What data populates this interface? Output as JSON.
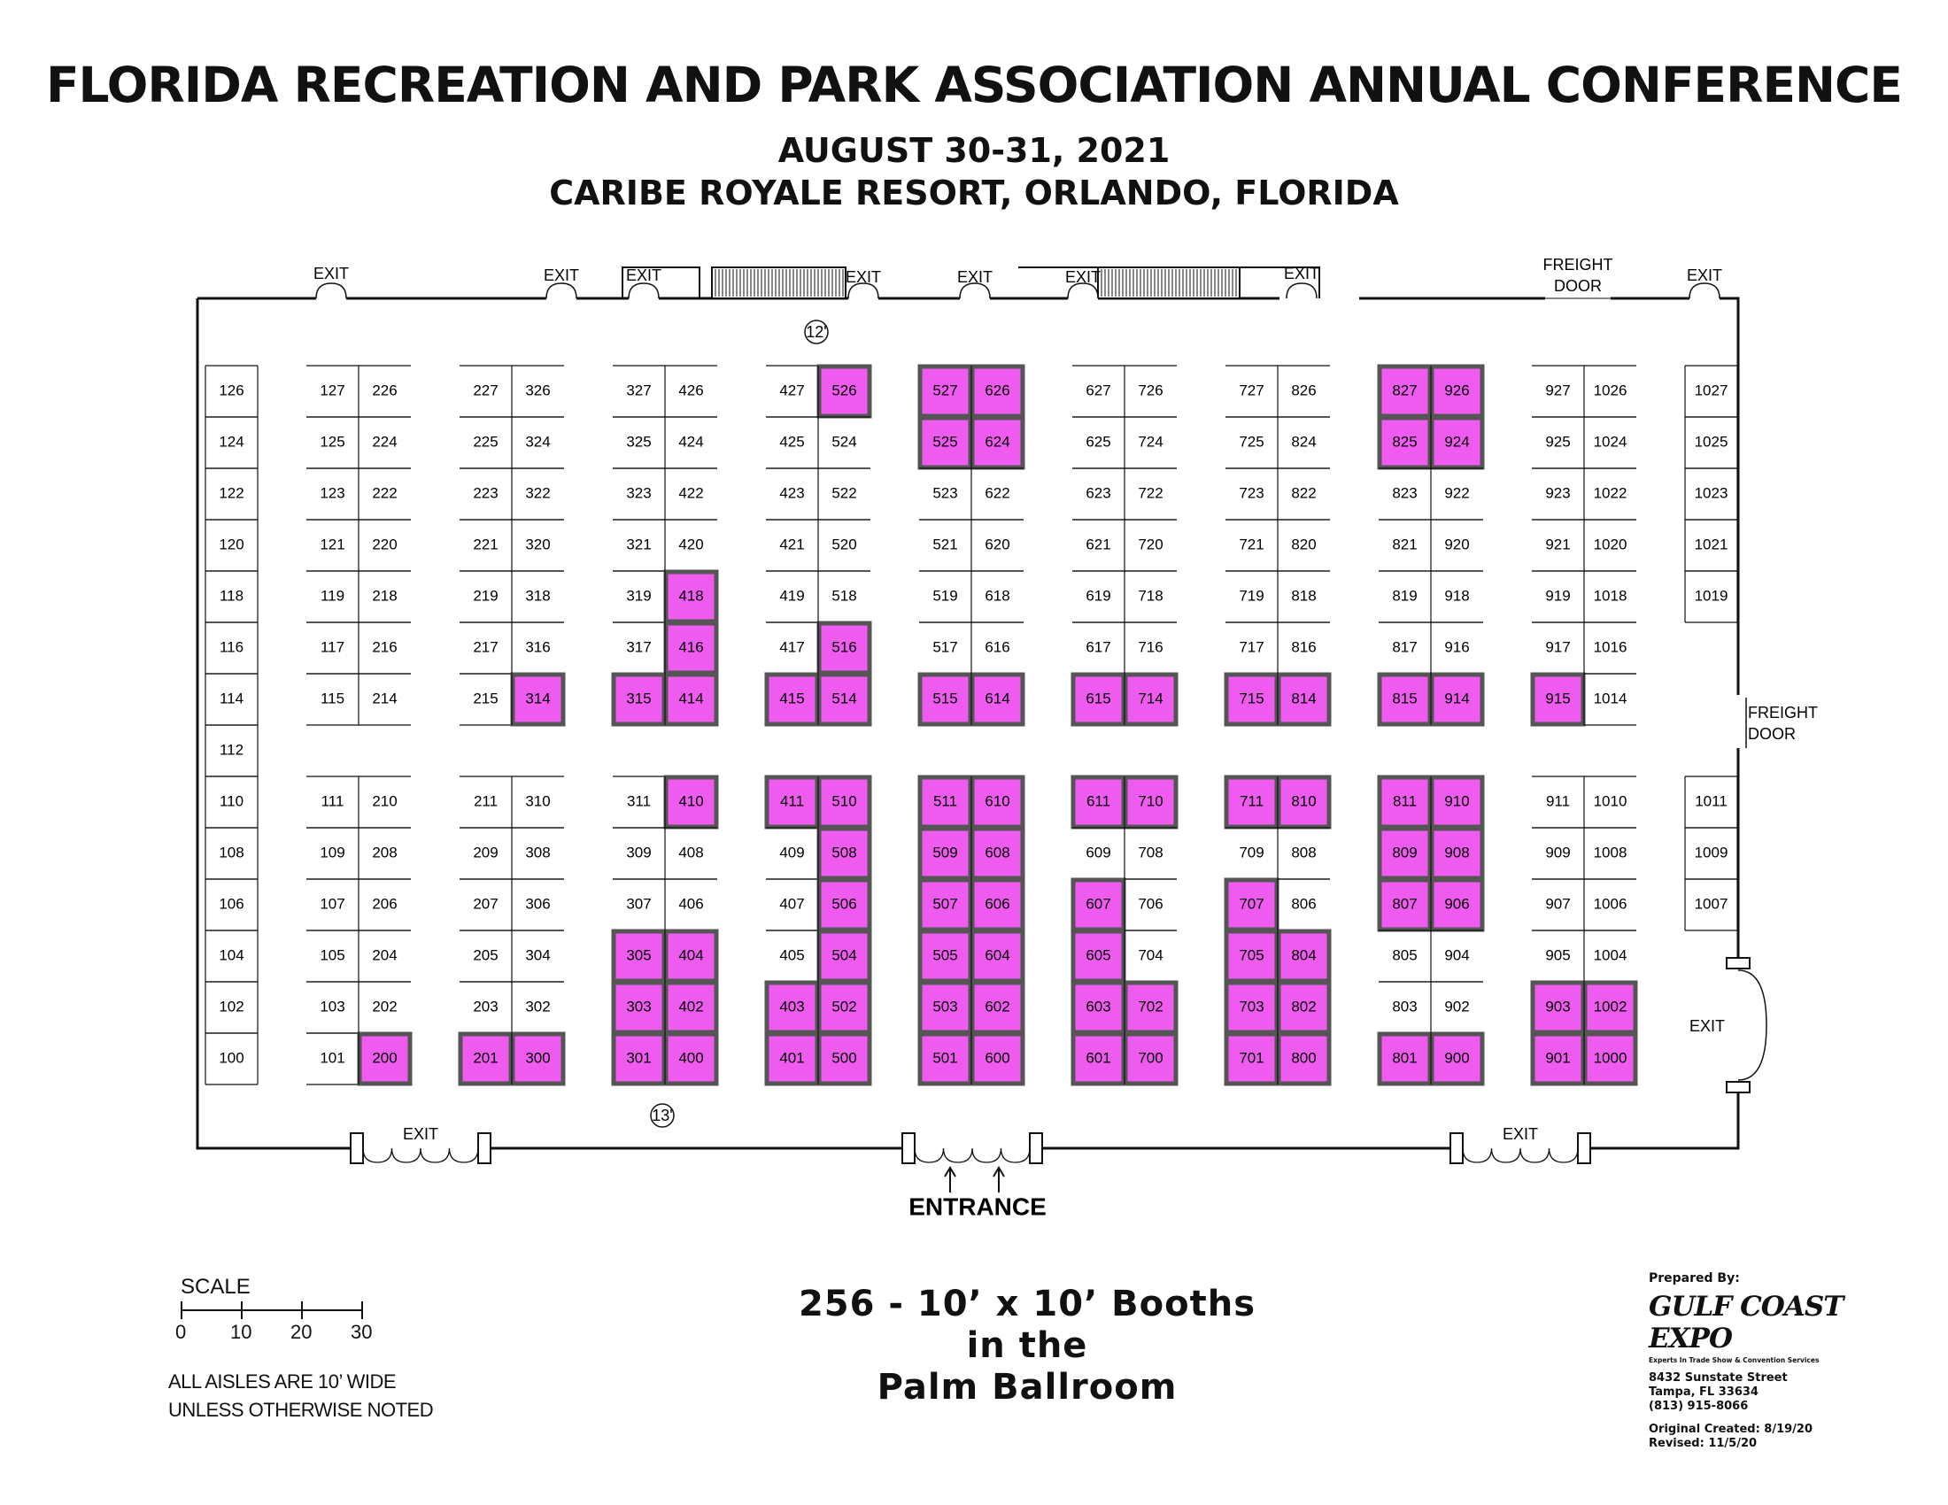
{
  "header": {
    "title": "FLORIDA RECREATION AND PARK ASSOCIATION ANNUAL CONFERENCE",
    "dates": "AUGUST 30-31, 2021",
    "venue": "CARIBE ROYALE RESORT, ORLANDO, FLORIDA"
  },
  "colors": {
    "reserved_fill": "#ee5bee",
    "reserved_border": "#555555",
    "line": "#111111"
  },
  "floorplan": {
    "top_exits": [
      "EXIT",
      "EXIT",
      "EXIT",
      "EXIT",
      "EXIT",
      "EXIT",
      "EXIT",
      "EXIT"
    ],
    "freight_door_top": "FREIGHT DOOR",
    "freight_door_right": "FREIGHT DOOR",
    "right_exit": "EXIT",
    "bottom_exits": [
      "EXIT",
      "EXIT"
    ],
    "entrance": "ENTRANCE",
    "ceiling_markers": [
      "12'",
      "13'"
    ],
    "rows": [
      {
        "id": "r0",
        "booths": [
          "126",
          "127",
          "226",
          "227",
          "326",
          "327",
          "426",
          "427",
          "526",
          "527",
          "626",
          "627",
          "726",
          "727",
          "826",
          "827",
          "926",
          "927",
          "1026",
          "1027"
        ]
      },
      {
        "id": "r1",
        "booths": [
          "124",
          "125",
          "224",
          "225",
          "324",
          "325",
          "424",
          "425",
          "524",
          "525",
          "624",
          "625",
          "724",
          "725",
          "824",
          "825",
          "924",
          "925",
          "1024",
          "1025"
        ]
      },
      {
        "id": "r2",
        "booths": [
          "122",
          "123",
          "222",
          "223",
          "322",
          "323",
          "422",
          "423",
          "522",
          "523",
          "622",
          "623",
          "722",
          "723",
          "822",
          "823",
          "922",
          "923",
          "1022",
          "1023"
        ]
      },
      {
        "id": "r3",
        "booths": [
          "120",
          "121",
          "220",
          "221",
          "320",
          "321",
          "420",
          "421",
          "520",
          "521",
          "620",
          "621",
          "720",
          "721",
          "820",
          "821",
          "920",
          "921",
          "1020",
          "1021"
        ]
      },
      {
        "id": "r4",
        "booths": [
          "118",
          "119",
          "218",
          "219",
          "318",
          "319",
          "418",
          "419",
          "518",
          "519",
          "618",
          "619",
          "718",
          "719",
          "818",
          "819",
          "918",
          "919",
          "1018",
          "1019"
        ]
      },
      {
        "id": "r5",
        "booths": [
          "116",
          "117",
          "216",
          "217",
          "316",
          "317",
          "416",
          "417",
          "516",
          "517",
          "616",
          "617",
          "716",
          "717",
          "816",
          "817",
          "916",
          "917",
          "1016",
          ""
        ]
      },
      {
        "id": "r6",
        "booths": [
          "114",
          "115",
          "214",
          "215",
          "314",
          "315",
          "414",
          "415",
          "514",
          "515",
          "614",
          "615",
          "714",
          "715",
          "814",
          "815",
          "914",
          "915",
          "1014",
          ""
        ]
      },
      {
        "id": "r7",
        "booths": [
          "112",
          "",
          "",
          "",
          "",
          "",
          "",
          "",
          "",
          "",
          "",
          "",
          "",
          "",
          "",
          "",
          "",
          "",
          "",
          ""
        ]
      },
      {
        "id": "r8",
        "booths": [
          "110",
          "111",
          "210",
          "211",
          "310",
          "311",
          "410",
          "411",
          "510",
          "511",
          "610",
          "611",
          "710",
          "711",
          "810",
          "811",
          "910",
          "911",
          "1010",
          "1011"
        ]
      },
      {
        "id": "r9",
        "booths": [
          "108",
          "109",
          "208",
          "209",
          "308",
          "309",
          "408",
          "409",
          "508",
          "509",
          "608",
          "609",
          "708",
          "709",
          "808",
          "809",
          "908",
          "909",
          "1008",
          "1009"
        ]
      },
      {
        "id": "r10",
        "booths": [
          "106",
          "107",
          "206",
          "207",
          "306",
          "307",
          "406",
          "407",
          "506",
          "507",
          "606",
          "607",
          "706",
          "707",
          "806",
          "807",
          "906",
          "907",
          "1006",
          "1007"
        ]
      },
      {
        "id": "r11",
        "booths": [
          "104",
          "105",
          "204",
          "205",
          "304",
          "305",
          "404",
          "405",
          "504",
          "505",
          "604",
          "605",
          "704",
          "705",
          "804",
          "805",
          "904",
          "905",
          "1004",
          ""
        ]
      },
      {
        "id": "r12",
        "booths": [
          "102",
          "103",
          "202",
          "203",
          "302",
          "303",
          "402",
          "403",
          "502",
          "503",
          "602",
          "603",
          "702",
          "703",
          "802",
          "803",
          "902",
          "903",
          "1002",
          ""
        ]
      },
      {
        "id": "r13",
        "booths": [
          "100",
          "101",
          "200",
          "201",
          "300",
          "301",
          "400",
          "401",
          "500",
          "501",
          "600",
          "601",
          "700",
          "701",
          "800",
          "801",
          "900",
          "901",
          "1000",
          ""
        ]
      }
    ],
    "reserved_booths": [
      "526",
      "527",
      "626",
      "525",
      "624",
      "827",
      "926",
      "825",
      "924",
      "418",
      "416",
      "516",
      "314",
      "315",
      "414",
      "415",
      "514",
      "515",
      "614",
      "615",
      "714",
      "715",
      "814",
      "815",
      "914",
      "915",
      "410",
      "411",
      "510",
      "511",
      "610",
      "611",
      "710",
      "711",
      "810",
      "811",
      "910",
      "508",
      "509",
      "608",
      "809",
      "908",
      "506",
      "507",
      "606",
      "607",
      "707",
      "807",
      "906",
      "305",
      "404",
      "504",
      "505",
      "604",
      "605",
      "705",
      "804",
      "303",
      "402",
      "403",
      "502",
      "503",
      "602",
      "603",
      "702",
      "703",
      "802",
      "903",
      "1002",
      "200",
      "201",
      "300",
      "301",
      "400",
      "401",
      "500",
      "501",
      "600",
      "601",
      "700",
      "701",
      "800",
      "801",
      "900",
      "901",
      "1000"
    ]
  },
  "summary": {
    "line1": "256 - 10’ x 10’ Booths",
    "line2": "in the",
    "line3": "Palm Ballroom"
  },
  "scale": {
    "title": "SCALE",
    "ticks": [
      "0",
      "10",
      "20",
      "30"
    ]
  },
  "notes": {
    "line1": "ALL AISLES ARE 10’ WIDE",
    "line2": "UNLESS OTHERWISE NOTED"
  },
  "prepared_by": {
    "label": "Prepared By:",
    "company": "GULF COAST EXPO",
    "tagline": "Experts In Trade Show & Convention Services",
    "address1": "8432 Sunstate Street",
    "address2": "Tampa, FL 33634",
    "phone": "(813) 915-8066",
    "created": "Original Created: 8/19/20",
    "revised": "Revised: 11/5/20"
  }
}
